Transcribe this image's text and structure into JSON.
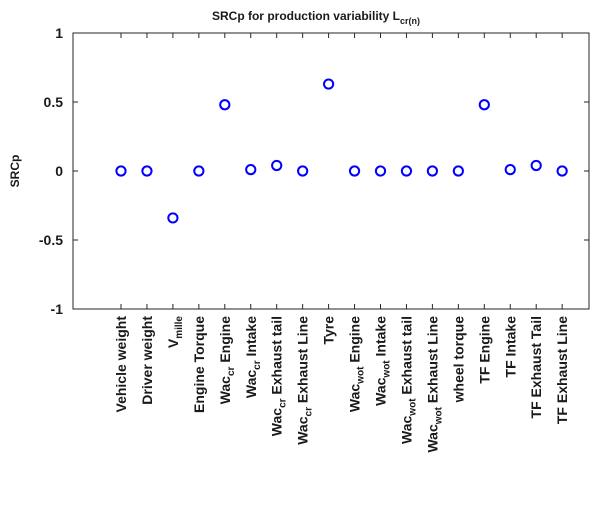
{
  "chart_data": {
    "type": "scatter",
    "title": "SRCp for production variability L",
    "title_subscript": "cr(n)",
    "xlabel": "",
    "ylabel": "SRCp",
    "ylim": [
      -1,
      1
    ],
    "yticks": [
      -1,
      -0.5,
      0,
      0.5,
      1
    ],
    "ytick_labels": [
      "-1",
      "-0.5",
      "0",
      "0.5",
      "1"
    ],
    "grid": false,
    "marker": "circle",
    "marker_color": "#0000ff",
    "categories": [
      {
        "main": "Vehicle weight",
        "sub": "",
        "suffix": ""
      },
      {
        "main": "Driver weight",
        "sub": "",
        "suffix": ""
      },
      {
        "main": "V",
        "sub": "mille",
        "suffix": ""
      },
      {
        "main": "Engine Torque",
        "sub": "",
        "suffix": ""
      },
      {
        "main": "Wac",
        "sub": "cr",
        "suffix": " Engine"
      },
      {
        "main": "Wac",
        "sub": "cr",
        "suffix": " Intake"
      },
      {
        "main": "Wac",
        "sub": "cr",
        "suffix": " Exhaust tail"
      },
      {
        "main": "Wac",
        "sub": "cr",
        "suffix": " Exhaust Line"
      },
      {
        "main": "Tyre",
        "sub": "",
        "suffix": ""
      },
      {
        "main": "Wac",
        "sub": "wot",
        "suffix": " Engine"
      },
      {
        "main": "Wac",
        "sub": "wot",
        "suffix": " Intake"
      },
      {
        "main": "Wac",
        "sub": "wot",
        "suffix": " Exhaust tail"
      },
      {
        "main": "Wac",
        "sub": "wot",
        "suffix": " Exhaust Line"
      },
      {
        "main": "wheel torque",
        "sub": "",
        "suffix": ""
      },
      {
        "main": "TF Engine",
        "sub": "",
        "suffix": ""
      },
      {
        "main": "TF Intake",
        "sub": "",
        "suffix": ""
      },
      {
        "main": "TF Exhaust Tail",
        "sub": "",
        "suffix": ""
      },
      {
        "main": "TF Exhaust Line",
        "sub": "",
        "suffix": ""
      }
    ],
    "values": [
      0.0,
      0.0,
      -0.34,
      0.0,
      0.48,
      0.01,
      0.04,
      0.0,
      0.63,
      0.0,
      0.0,
      0.0,
      0.0,
      0.0,
      0.48,
      0.01,
      0.04,
      0.0
    ]
  }
}
